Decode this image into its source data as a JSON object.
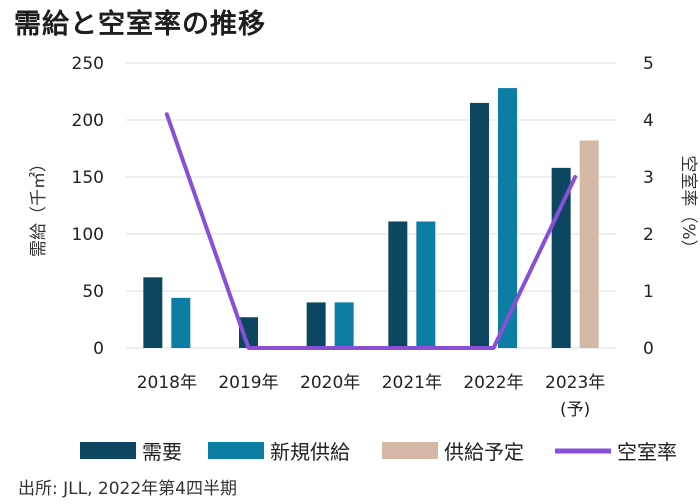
{
  "chart_data": {
    "type": "bar",
    "title": "需給と空室率の推移",
    "categories": [
      "2018年",
      "2019年",
      "2020年",
      "2021年",
      "2022年",
      "2023年\n(予)"
    ],
    "series": [
      {
        "name": "需要",
        "type": "bar",
        "axis": "left",
        "color": "#0d4660",
        "values": [
          62,
          27,
          40,
          111,
          215,
          158
        ]
      },
      {
        "name": "新規供給",
        "type": "bar",
        "axis": "left",
        "color": "#0c7ea3",
        "values": [
          44,
          0,
          40,
          111,
          228,
          0
        ]
      },
      {
        "name": "供給予定",
        "type": "bar",
        "axis": "left",
        "color": "#d3b9a5",
        "values": [
          0,
          0,
          0,
          0,
          0,
          182
        ]
      },
      {
        "name": "空室率",
        "type": "line",
        "axis": "right",
        "color": "#8a4fd8",
        "values": [
          4.1,
          0,
          0,
          0,
          0,
          3.0
        ]
      }
    ],
    "ylabel_left": "需給（千㎡）",
    "ylabel_right": "空室率（%）",
    "ylim_left": [
      0,
      250
    ],
    "yticks_left": [
      0,
      50,
      100,
      150,
      200,
      250
    ],
    "ylim_right": [
      0,
      5
    ],
    "yticks_right": [
      0,
      1,
      2,
      3,
      4,
      5
    ],
    "grid": true,
    "legend_position": "bottom"
  },
  "source": "出所: JLL, 2022年第4四半期"
}
